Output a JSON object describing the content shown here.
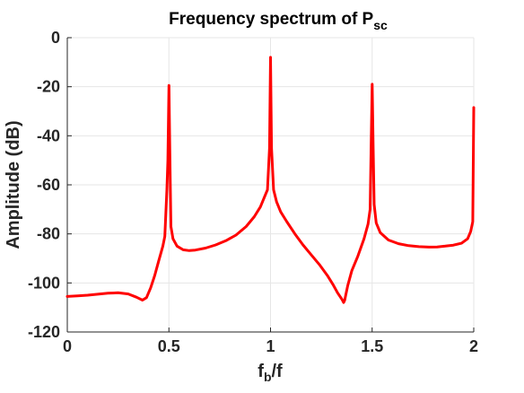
{
  "chart_data": {
    "type": "line",
    "title": "Frequency spectrum of P",
    "title_subscript": "sc",
    "xlabel": "f",
    "xlabel_subscript": "b",
    "xlabel_suffix": "/f",
    "ylabel": "Amplitude (dB)",
    "xlim": [
      0,
      2
    ],
    "ylim": [
      -120,
      0
    ],
    "xticks": [
      0,
      0.5,
      1,
      1.5,
      2
    ],
    "xtick_labels": [
      "0",
      "0.5",
      "1",
      "1.5",
      "2"
    ],
    "yticks": [
      0,
      -20,
      -40,
      -60,
      -80,
      -100,
      -120
    ],
    "ytick_labels": [
      "0",
      "-20",
      "-40",
      "-60",
      "-80",
      "-100",
      "-120"
    ],
    "grid": true,
    "line_color": "#ff0000",
    "series": [
      {
        "x": [
          0,
          0.05,
          0.1,
          0.15,
          0.2,
          0.25,
          0.3,
          0.34,
          0.37,
          0.39,
          0.41,
          0.43,
          0.45,
          0.47,
          0.48,
          0.49,
          0.495,
          0.5,
          0.505,
          0.51,
          0.52,
          0.54,
          0.57,
          0.6,
          0.63,
          0.68,
          0.73,
          0.78,
          0.83,
          0.88,
          0.92,
          0.95,
          0.97,
          0.985,
          0.995,
          1.0,
          1.005,
          1.015,
          1.03,
          1.05,
          1.08,
          1.12,
          1.16,
          1.2,
          1.24,
          1.28,
          1.31,
          1.33,
          1.35,
          1.36,
          1.365,
          1.37,
          1.38,
          1.4,
          1.43,
          1.46,
          1.48,
          1.49,
          1.495,
          1.5,
          1.505,
          1.51,
          1.52,
          1.54,
          1.58,
          1.63,
          1.68,
          1.73,
          1.78,
          1.82,
          1.86,
          1.9,
          1.94,
          1.97,
          1.985,
          1.995,
          2.0
        ],
        "y": [
          -105.5,
          -105.3,
          -105,
          -104.6,
          -104.2,
          -104,
          -104.5,
          -105.8,
          -107,
          -106,
          -102,
          -97,
          -91,
          -85,
          -81,
          -62,
          -50,
          -19.5,
          -50,
          -77,
          -82,
          -85,
          -86.5,
          -86.8,
          -86.6,
          -85.8,
          -84.5,
          -82.8,
          -80.5,
          -77,
          -73,
          -69,
          -65,
          -62,
          -45,
          -8,
          -45,
          -62,
          -67,
          -71,
          -75,
          -80,
          -84.5,
          -88.5,
          -92.5,
          -97,
          -101,
          -104,
          -106.5,
          -108,
          -107,
          -105,
          -101,
          -95,
          -89,
          -82,
          -76,
          -70,
          -45,
          -19,
          -45,
          -68,
          -75.5,
          -79.5,
          -82.5,
          -84,
          -84.8,
          -85.2,
          -85.4,
          -85.3,
          -85,
          -84.6,
          -83.8,
          -82,
          -79,
          -75,
          -28.5
        ]
      }
    ]
  }
}
